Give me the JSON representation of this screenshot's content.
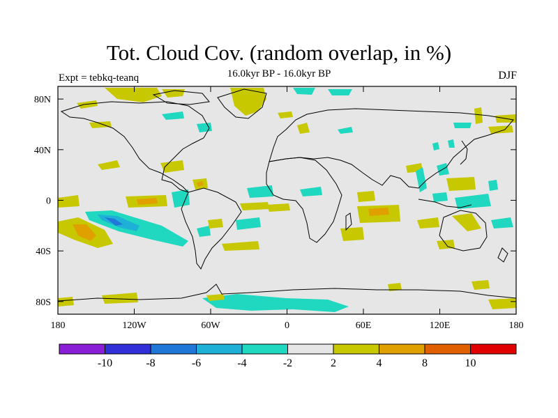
{
  "title": "Tot. Cloud Cov. (random overlap, in %)",
  "subtitle": "16.0kyr BP - 16.0kyr BP",
  "expt_label": "Expt = tebkq-teanq",
  "season_label": "DJF",
  "map": {
    "background_color": "#e6e6e6",
    "coastline_color": "#000000",
    "lat_ticks": [
      {
        "label": "80N",
        "lat": 80
      },
      {
        "label": "40N",
        "lat": 40
      },
      {
        "label": "0",
        "lat": 0
      },
      {
        "label": "40S",
        "lat": -40
      },
      {
        "label": "80S",
        "lat": -80
      }
    ],
    "lon_ticks": [
      {
        "label": "180",
        "lon": -180
      },
      {
        "label": "120W",
        "lon": -120
      },
      {
        "label": "60W",
        "lon": -60
      },
      {
        "label": "0",
        "lon": 0
      },
      {
        "label": "60E",
        "lon": 60
      },
      {
        "label": "120E",
        "lon": 120
      },
      {
        "label": "180",
        "lon": 180
      }
    ]
  },
  "colorbar": {
    "colors": [
      "#8a1ed6",
      "#3030d8",
      "#1f78d8",
      "#1fb0d8",
      "#20d8c0",
      "#e6e6e6",
      "#c8c800",
      "#e0a000",
      "#e06000",
      "#e00000"
    ],
    "labels": [
      "-10",
      "-8",
      "-6",
      "-4",
      "-2",
      "2",
      "4",
      "8",
      "10"
    ]
  }
}
